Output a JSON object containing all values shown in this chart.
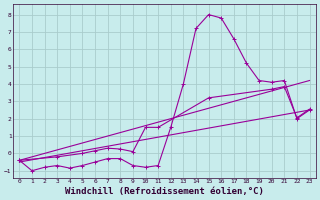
{
  "background_color": "#c8ecec",
  "grid_color": "#aacccc",
  "line_color": "#990099",
  "xlabel": "Windchill (Refroidissement éolien,°C)",
  "xlabel_fontsize": 6.5,
  "ylim": [
    -1.4,
    8.6
  ],
  "xlim": [
    -0.5,
    23.5
  ],
  "yticks": [
    -1,
    0,
    1,
    2,
    3,
    4,
    5,
    6,
    7,
    8
  ],
  "xticks": [
    0,
    1,
    2,
    3,
    4,
    5,
    6,
    7,
    8,
    9,
    10,
    11,
    12,
    13,
    14,
    15,
    16,
    17,
    18,
    19,
    20,
    21,
    22,
    23
  ],
  "line1_x": [
    0,
    1,
    2,
    3,
    4,
    5,
    6,
    7,
    8,
    9,
    10,
    11,
    12,
    13,
    14,
    15,
    16,
    17,
    18,
    19,
    20,
    21,
    22,
    23
  ],
  "line1_y": [
    -0.4,
    -1.0,
    -0.8,
    -0.7,
    -0.85,
    -0.7,
    -0.5,
    -0.3,
    -0.3,
    -0.7,
    -0.8,
    -0.7,
    1.5,
    4.0,
    7.2,
    8.0,
    7.8,
    6.6,
    5.2,
    4.2,
    4.1,
    4.2,
    2.0,
    2.5
  ],
  "line2_x": [
    0,
    3,
    5,
    6,
    7,
    8,
    9,
    10,
    11,
    15,
    20,
    21,
    22,
    23
  ],
  "line2_y": [
    -0.4,
    -0.2,
    0.0,
    0.15,
    0.3,
    0.25,
    0.1,
    1.5,
    1.5,
    3.2,
    3.7,
    3.85,
    2.05,
    2.55
  ],
  "line3_x": [
    0,
    23
  ],
  "line3_y": [
    -0.5,
    2.5
  ],
  "line4_x": [
    0,
    23
  ],
  "line4_y": [
    -0.4,
    4.2
  ]
}
